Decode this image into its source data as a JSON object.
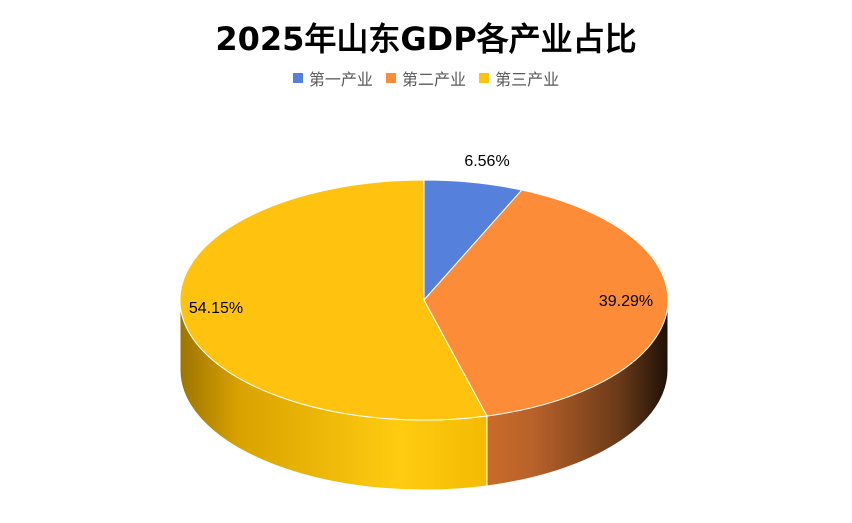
{
  "chart_data": {
    "type": "pie",
    "style": "3d",
    "title": "2025年山东GDP各产业占比",
    "categories": [
      "第一产业",
      "第二产业",
      "第三产业"
    ],
    "values": [
      6.56,
      39.29,
      54.15
    ],
    "data_labels": [
      "6.56%",
      "39.29%",
      "54.15%"
    ],
    "colors": [
      "#5580DC",
      "#FC8C38",
      "#FFC20E"
    ],
    "legend_position": "top"
  }
}
